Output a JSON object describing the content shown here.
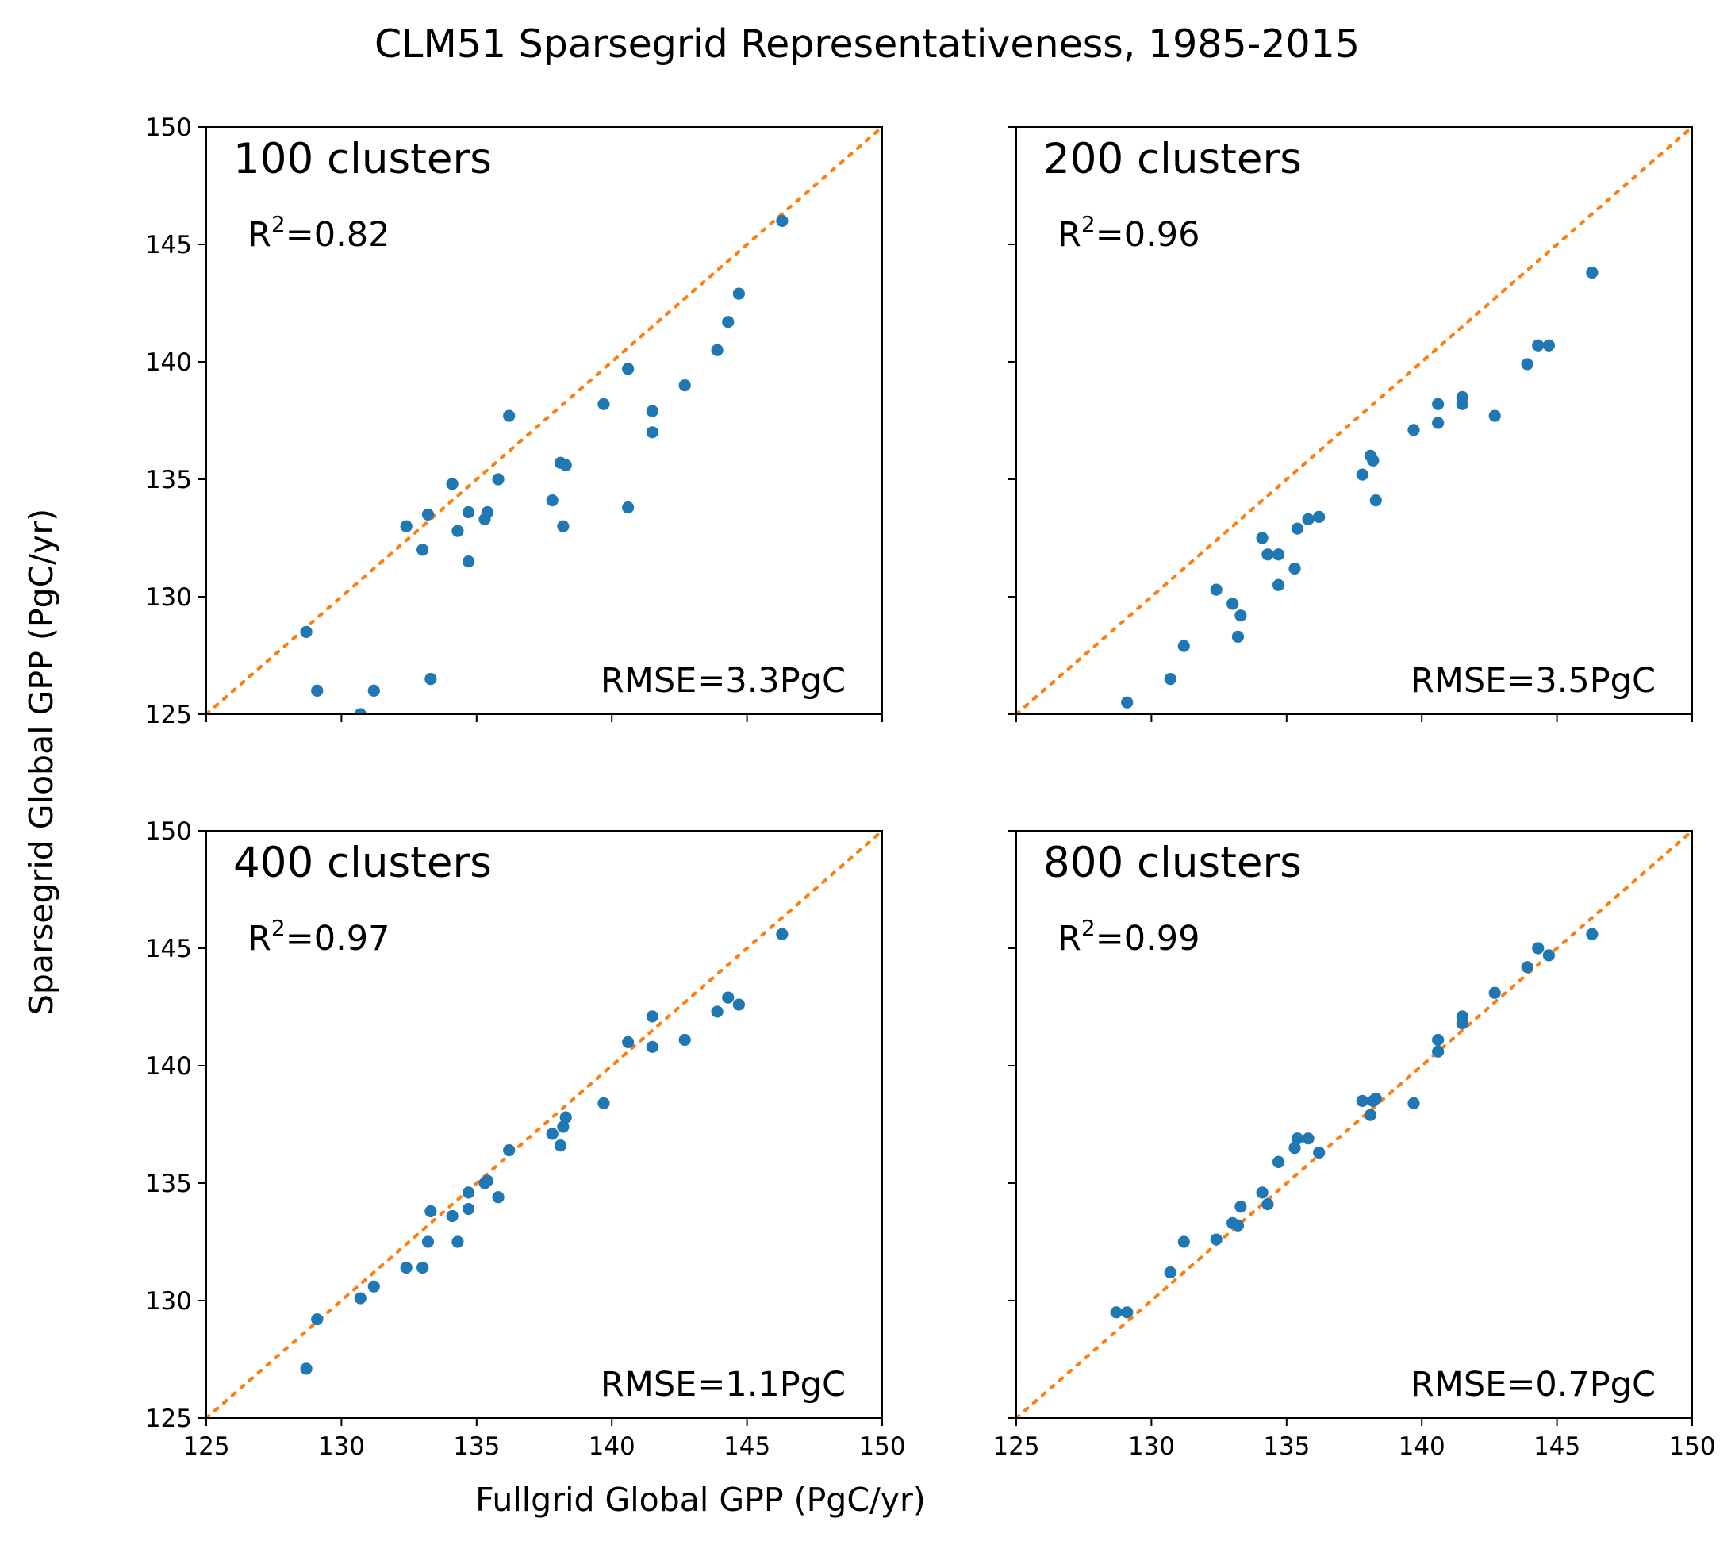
{
  "figure": {
    "title": "CLM51 Sparsegrid Representativeness, 1985-2015",
    "xlabel": "Fullgrid Global GPP (PgC/yr)",
    "ylabel": "Sparsegrid Global GPP (PgC/yr)"
  },
  "colors": {
    "points": "#1f77b4",
    "identity_line": "#ff7f0e",
    "axes": "#000000"
  },
  "chart_data": [
    {
      "type": "scatter",
      "title": "100 clusters",
      "r2_prefix": "R",
      "r2_exp": "2",
      "r2_value": "=0.82",
      "rmse": "RMSE=3.3PgC",
      "xlim": [
        125,
        150
      ],
      "ylim": [
        125,
        150
      ],
      "xticks": [
        "125",
        "130",
        "135",
        "140",
        "145",
        "150"
      ],
      "yticks": [
        "125",
        "130",
        "135",
        "140",
        "145",
        "150"
      ],
      "identity_line": true,
      "points": [
        [
          128.7,
          128.5
        ],
        [
          129.1,
          126.0
        ],
        [
          130.7,
          125.0
        ],
        [
          131.2,
          126.0
        ],
        [
          132.4,
          133.0
        ],
        [
          133.0,
          132.0
        ],
        [
          133.2,
          133.5
        ],
        [
          133.3,
          126.5
        ],
        [
          134.1,
          134.8
        ],
        [
          134.3,
          132.8
        ],
        [
          134.7,
          133.6
        ],
        [
          134.7,
          131.5
        ],
        [
          135.3,
          133.3
        ],
        [
          135.4,
          133.6
        ],
        [
          135.8,
          135.0
        ],
        [
          136.2,
          137.7
        ],
        [
          137.8,
          134.1
        ],
        [
          138.1,
          135.7
        ],
        [
          138.2,
          133.0
        ],
        [
          138.3,
          135.6
        ],
        [
          139.7,
          138.2
        ],
        [
          140.6,
          139.7
        ],
        [
          140.6,
          133.8
        ],
        [
          141.5,
          137.9
        ],
        [
          141.5,
          137.0
        ],
        [
          142.7,
          139.0
        ],
        [
          143.9,
          140.5
        ],
        [
          144.3,
          141.7
        ],
        [
          144.7,
          142.9
        ],
        [
          146.3,
          146.0
        ]
      ]
    },
    {
      "type": "scatter",
      "title": "200 clusters",
      "r2_prefix": "R",
      "r2_exp": "2",
      "r2_value": "=0.96",
      "rmse": "RMSE=3.5PgC",
      "xlim": [
        125,
        150
      ],
      "ylim": [
        125,
        150
      ],
      "xticks": [
        "125",
        "130",
        "135",
        "140",
        "145",
        "150"
      ],
      "yticks": [
        "125",
        "130",
        "135",
        "140",
        "145",
        "150"
      ],
      "identity_line": true,
      "points": [
        [
          129.1,
          125.5
        ],
        [
          130.7,
          126.5
        ],
        [
          131.2,
          127.9
        ],
        [
          132.4,
          130.3
        ],
        [
          133.0,
          129.7
        ],
        [
          133.2,
          128.3
        ],
        [
          133.3,
          129.2
        ],
        [
          134.1,
          132.5
        ],
        [
          134.3,
          131.8
        ],
        [
          134.7,
          131.8
        ],
        [
          134.7,
          130.5
        ],
        [
          135.3,
          131.2
        ],
        [
          135.4,
          132.9
        ],
        [
          135.8,
          133.3
        ],
        [
          136.2,
          133.4
        ],
        [
          137.8,
          135.2
        ],
        [
          138.1,
          136.0
        ],
        [
          138.2,
          135.8
        ],
        [
          138.3,
          134.1
        ],
        [
          139.7,
          137.1
        ],
        [
          140.6,
          138.2
        ],
        [
          140.6,
          137.4
        ],
        [
          141.5,
          138.5
        ],
        [
          141.5,
          138.2
        ],
        [
          142.7,
          137.7
        ],
        [
          143.9,
          139.9
        ],
        [
          144.3,
          140.7
        ],
        [
          144.7,
          140.7
        ],
        [
          146.3,
          143.8
        ]
      ]
    },
    {
      "type": "scatter",
      "title": "400 clusters",
      "r2_prefix": "R",
      "r2_exp": "2",
      "r2_value": "=0.97",
      "rmse": "RMSE=1.1PgC",
      "xlim": [
        125,
        150
      ],
      "ylim": [
        125,
        150
      ],
      "xticks": [
        "125",
        "130",
        "135",
        "140",
        "145",
        "150"
      ],
      "yticks": [
        "125",
        "130",
        "135",
        "140",
        "145",
        "150"
      ],
      "identity_line": true,
      "points": [
        [
          128.7,
          127.1
        ],
        [
          129.1,
          129.2
        ],
        [
          130.7,
          130.1
        ],
        [
          131.2,
          130.6
        ],
        [
          132.4,
          131.4
        ],
        [
          133.0,
          131.4
        ],
        [
          133.2,
          132.5
        ],
        [
          133.3,
          133.8
        ],
        [
          134.1,
          133.6
        ],
        [
          134.3,
          132.5
        ],
        [
          134.7,
          134.6
        ],
        [
          134.7,
          133.9
        ],
        [
          135.3,
          135.0
        ],
        [
          135.4,
          135.1
        ],
        [
          135.8,
          134.4
        ],
        [
          136.2,
          136.4
        ],
        [
          137.8,
          137.1
        ],
        [
          138.1,
          136.6
        ],
        [
          138.2,
          137.4
        ],
        [
          138.3,
          137.8
        ],
        [
          139.7,
          138.4
        ],
        [
          140.6,
          141.0
        ],
        [
          141.5,
          142.1
        ],
        [
          141.5,
          140.8
        ],
        [
          142.7,
          141.1
        ],
        [
          143.9,
          142.3
        ],
        [
          144.3,
          142.9
        ],
        [
          144.7,
          142.6
        ],
        [
          146.3,
          145.6
        ]
      ]
    },
    {
      "type": "scatter",
      "title": "800 clusters",
      "r2_prefix": "R",
      "r2_exp": "2",
      "r2_value": "=0.99",
      "rmse": "RMSE=0.7PgC",
      "xlim": [
        125,
        150
      ],
      "ylim": [
        125,
        150
      ],
      "xticks": [
        "125",
        "130",
        "135",
        "140",
        "145",
        "150"
      ],
      "yticks": [
        "125",
        "130",
        "135",
        "140",
        "145",
        "150"
      ],
      "identity_line": true,
      "points": [
        [
          128.7,
          129.5
        ],
        [
          129.1,
          129.5
        ],
        [
          130.7,
          131.2
        ],
        [
          131.2,
          132.5
        ],
        [
          132.4,
          132.6
        ],
        [
          133.0,
          133.3
        ],
        [
          133.2,
          133.2
        ],
        [
          133.3,
          134.0
        ],
        [
          134.1,
          134.6
        ],
        [
          134.3,
          134.1
        ],
        [
          134.7,
          135.9
        ],
        [
          134.7,
          135.9
        ],
        [
          135.3,
          136.5
        ],
        [
          135.4,
          136.9
        ],
        [
          135.8,
          136.9
        ],
        [
          136.2,
          136.3
        ],
        [
          137.8,
          138.5
        ],
        [
          138.1,
          137.9
        ],
        [
          138.2,
          138.5
        ],
        [
          138.3,
          138.6
        ],
        [
          139.7,
          138.4
        ],
        [
          140.6,
          141.1
        ],
        [
          140.6,
          140.6
        ],
        [
          141.5,
          142.1
        ],
        [
          141.5,
          141.8
        ],
        [
          142.7,
          143.1
        ],
        [
          143.9,
          144.2
        ],
        [
          144.3,
          145.0
        ],
        [
          144.7,
          144.7
        ],
        [
          146.3,
          145.6
        ]
      ]
    }
  ]
}
